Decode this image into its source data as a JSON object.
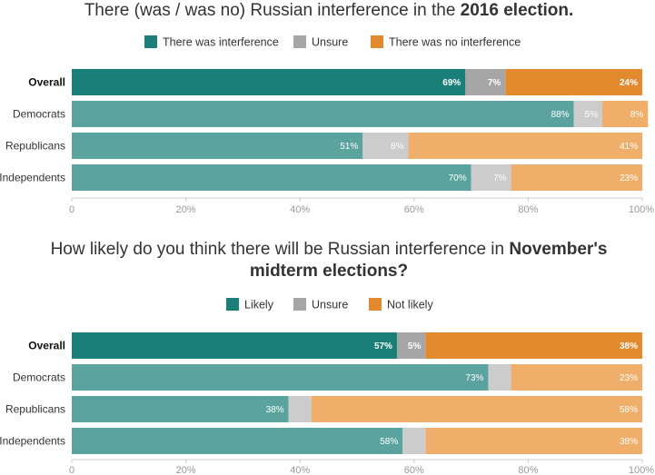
{
  "colors": {
    "yes_strong": "#1a7f78",
    "unsure_strong": "#a6a6a6",
    "no_strong": "#e38a2e",
    "yes_light": "#5ba39e",
    "unsure_light": "#cccccc",
    "no_light": "#efae6a",
    "axis": "#cccccc",
    "tick_text": "#999999"
  },
  "chart_data": [
    {
      "type": "bar",
      "orientation": "horizontal",
      "stacked": true,
      "title_prefix": "There (was / was no) Russian interference in the ",
      "title_bold": "2016 election.",
      "legend": [
        "There was interference",
        "Unsure",
        "There was no interference"
      ],
      "legend_placement": "top-center",
      "categories": [
        "Overall",
        "Democrats",
        "Republicans",
        "Independents"
      ],
      "highlight_category": "Overall",
      "series": [
        {
          "name": "There was interference",
          "values": [
            69,
            88,
            51,
            70
          ],
          "labels": [
            "69%",
            "88%",
            "51%",
            "70%"
          ]
        },
        {
          "name": "Unsure",
          "values": [
            7,
            5,
            8,
            7
          ],
          "labels": [
            "7%",
            "5%",
            "8%",
            "7%"
          ]
        },
        {
          "name": "There was no interference",
          "values": [
            24,
            8,
            41,
            23
          ],
          "labels": [
            "24%",
            "8%",
            "41%",
            "23%"
          ]
        }
      ],
      "xlim": [
        0,
        100
      ],
      "xticks": [
        "0",
        "20%",
        "40%",
        "60%",
        "80%",
        "100%"
      ],
      "grid": false
    },
    {
      "type": "bar",
      "orientation": "horizontal",
      "stacked": true,
      "title_line1_prefix": "How likely do you think there will be Russian interference in ",
      "title_line1_bold": "November's",
      "title_line2_bold": "midterm elections?",
      "legend": [
        "Likely",
        "Unsure",
        "Not likely"
      ],
      "legend_placement": "top-center",
      "categories": [
        "Overall",
        "Democrats",
        "Republicans",
        "Independents"
      ],
      "highlight_category": "Overall",
      "series": [
        {
          "name": "Likely",
          "values": [
            57,
            73,
            38,
            58
          ],
          "labels": [
            "57%",
            "73%",
            "38%",
            "58%"
          ]
        },
        {
          "name": "Unsure",
          "values": [
            5,
            4,
            4,
            4
          ],
          "labels": [
            "5%",
            "",
            "",
            ""
          ]
        },
        {
          "name": "Not likely",
          "values": [
            38,
            23,
            58,
            38
          ],
          "labels": [
            "38%",
            "23%",
            "58%",
            "38%"
          ]
        }
      ],
      "xlim": [
        0,
        100
      ],
      "xticks": [
        "0",
        "20%",
        "40%",
        "60%",
        "80%",
        "100%"
      ],
      "grid": false
    }
  ]
}
